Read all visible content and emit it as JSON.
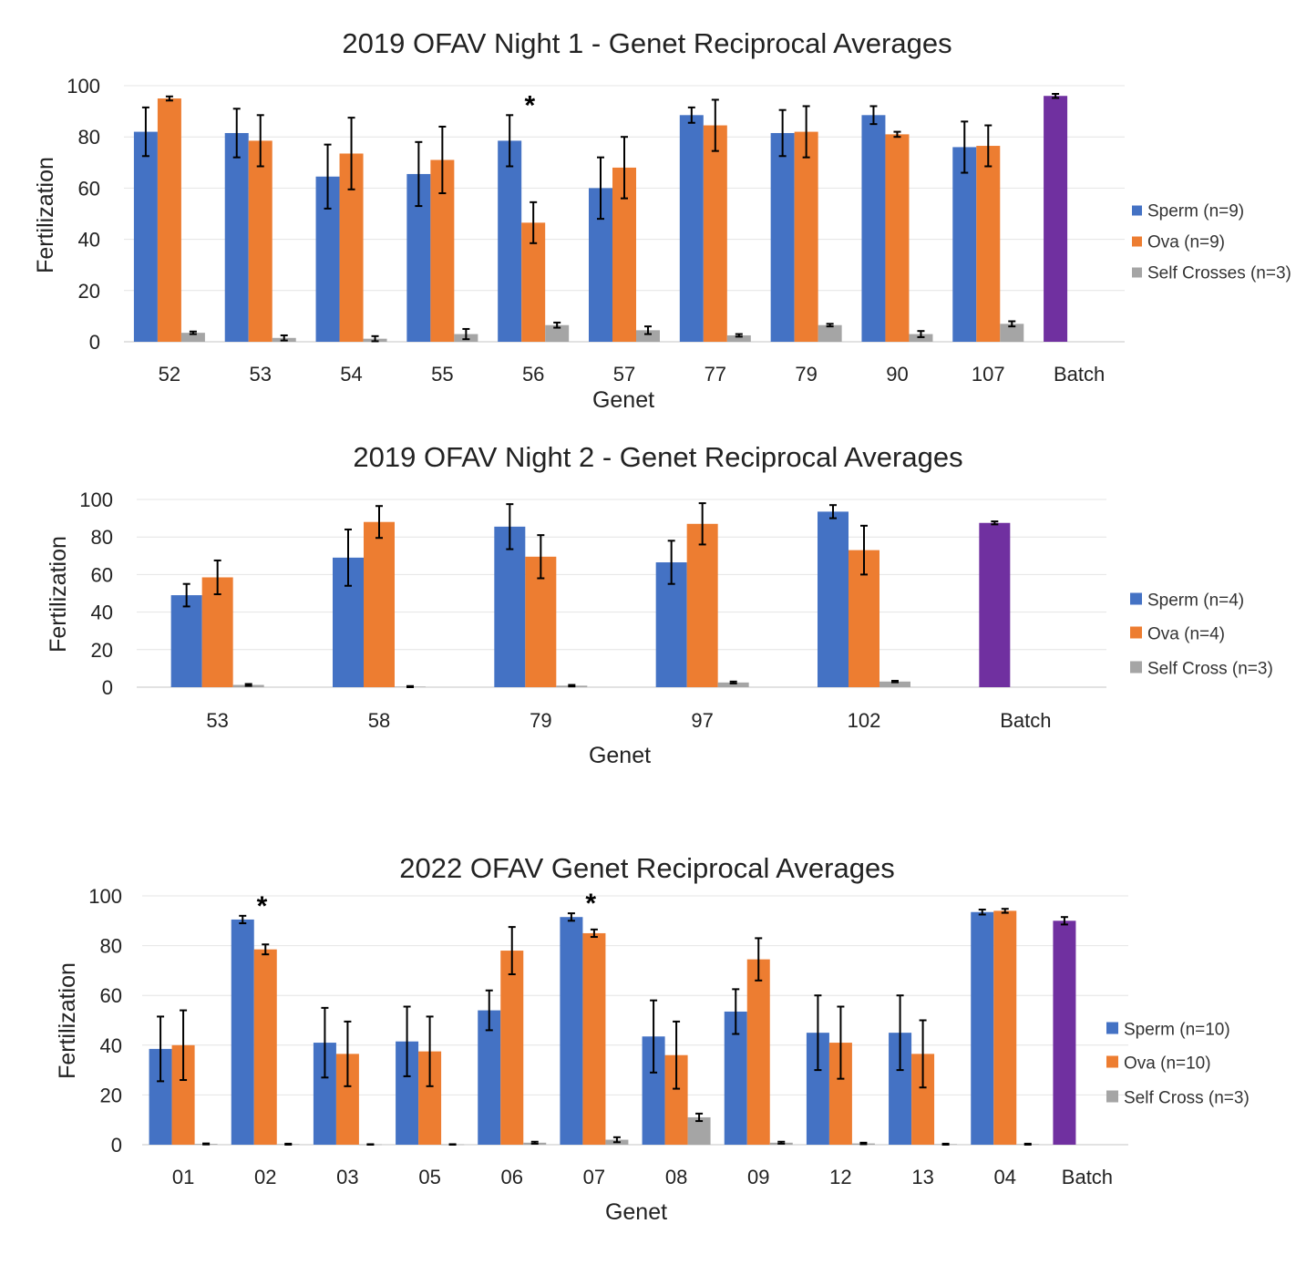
{
  "colors": {
    "sperm": "#4472C4",
    "ova": "#ED7D31",
    "self": "#A5A5A5",
    "batch": "#7030A0"
  },
  "chart_data": [
    {
      "type": "bar",
      "title": "2019 OFAV Night 1 - Genet Reciprocal Averages",
      "xlabel": "Genet",
      "ylabel": "Fertilization",
      "ylim": [
        0,
        100
      ],
      "yticks": [
        "0",
        "20",
        "40",
        "60",
        "80",
        "100"
      ],
      "categories": [
        "52",
        "53",
        "54",
        "55",
        "56",
        "57",
        "77",
        "79",
        "90",
        "107",
        "Batch"
      ],
      "series": [
        {
          "name": "Sperm (n=9)",
          "key": "sperm",
          "values": [
            82,
            81.5,
            64.5,
            65.5,
            78.5,
            60,
            88.5,
            81.5,
            88.5,
            76,
            null
          ],
          "errors": [
            9.5,
            9.5,
            12.5,
            12.5,
            10,
            12,
            3,
            9,
            3.5,
            10,
            null
          ]
        },
        {
          "name": "Ova (n=9)",
          "key": "ova",
          "values": [
            95,
            78.5,
            73.5,
            71,
            46.5,
            68,
            84.5,
            82,
            81,
            76.5,
            null
          ],
          "errors": [
            0.8,
            10,
            14,
            13,
            8,
            12,
            10,
            10,
            1,
            8,
            null
          ]
        },
        {
          "name": "Self Crosses (n=3)",
          "key": "self",
          "values": [
            3.5,
            1.5,
            1.2,
            3,
            6.5,
            4.5,
            2.5,
            6.5,
            3,
            7,
            null
          ],
          "errors": [
            0.5,
            1,
            1,
            2,
            1,
            1.5,
            0.5,
            0.5,
            1.2,
            1,
            null
          ]
        },
        {
          "name": "Batch",
          "key": "batch",
          "legend": false,
          "values": [
            null,
            null,
            null,
            null,
            null,
            null,
            null,
            null,
            null,
            null,
            96
          ],
          "errors": [
            null,
            null,
            null,
            null,
            null,
            null,
            null,
            null,
            null,
            null,
            0.8
          ]
        }
      ],
      "significance_marks": [
        {
          "category": "56",
          "series": "sperm",
          "label": "*"
        }
      ],
      "legend": "right"
    },
    {
      "type": "bar",
      "title": "2019 OFAV Night 2 - Genet Reciprocal Averages",
      "xlabel": "Genet",
      "ylabel": "Fertilization",
      "ylim": [
        0,
        100
      ],
      "yticks": [
        "0",
        "20",
        "40",
        "60",
        "80",
        "100"
      ],
      "categories": [
        "53",
        "58",
        "79",
        "97",
        "102",
        "Batch"
      ],
      "series": [
        {
          "name": "Sperm (n=4)",
          "key": "sperm",
          "values": [
            49,
            69,
            85.5,
            66.5,
            93.5,
            null
          ],
          "errors": [
            6,
            15,
            12,
            11.5,
            3.5,
            null
          ]
        },
        {
          "name": "Ova (n=4)",
          "key": "ova",
          "values": [
            58.5,
            88,
            69.5,
            87,
            73,
            null
          ],
          "errors": [
            9,
            8.5,
            11.5,
            11,
            13,
            null
          ]
        },
        {
          "name": "Self Cross (n=3)",
          "key": "self",
          "values": [
            1.2,
            0.3,
            0.8,
            2.5,
            3,
            null
          ],
          "errors": [
            0.5,
            0.3,
            0.4,
            0.5,
            0.4,
            null
          ]
        },
        {
          "name": "Batch",
          "key": "batch",
          "legend": false,
          "values": [
            null,
            null,
            null,
            null,
            null,
            87.5
          ],
          "errors": [
            null,
            null,
            null,
            null,
            null,
            0.8
          ]
        }
      ],
      "legend": "right"
    },
    {
      "type": "bar",
      "title": "2022 OFAV Genet Reciprocal Averages",
      "xlabel": "Genet",
      "ylabel": "Fertilization",
      "ylim": [
        0,
        100
      ],
      "yticks": [
        "0",
        "20",
        "40",
        "60",
        "80",
        "100"
      ],
      "categories": [
        "01",
        "02",
        "03",
        "05",
        "06",
        "07",
        "08",
        "09",
        "12",
        "13",
        "04",
        "Batch"
      ],
      "series": [
        {
          "name": "Sperm (n=10)",
          "key": "sperm",
          "values": [
            38.5,
            90.5,
            41,
            41.5,
            54,
            91.5,
            43.5,
            53.5,
            45,
            45,
            93.5,
            null
          ],
          "errors": [
            13,
            1.5,
            14,
            14,
            8,
            1.5,
            14.5,
            9,
            15,
            15,
            1,
            null
          ]
        },
        {
          "name": "Ova (n=10)",
          "key": "ova",
          "values": [
            40,
            78.5,
            36.5,
            37.5,
            78,
            85,
            36,
            74.5,
            41,
            36.5,
            94,
            null
          ],
          "errors": [
            14,
            2,
            13,
            14,
            9.5,
            1.5,
            13.5,
            8.5,
            14.5,
            13.5,
            0.8,
            null
          ]
        },
        {
          "name": "Self Cross (n=3)",
          "key": "self",
          "values": [
            0.3,
            0.2,
            0.1,
            0.1,
            0.8,
            2,
            11,
            0.8,
            0.5,
            0.2,
            0.2,
            null
          ],
          "errors": [
            0.2,
            0.2,
            0.1,
            0.1,
            0.4,
            1,
            1.5,
            0.4,
            0.3,
            0.2,
            0.2,
            null
          ]
        },
        {
          "name": "Batch",
          "key": "batch",
          "legend": false,
          "values": [
            null,
            null,
            null,
            null,
            null,
            null,
            null,
            null,
            null,
            null,
            null,
            90
          ],
          "errors": [
            null,
            null,
            null,
            null,
            null,
            null,
            null,
            null,
            null,
            null,
            null,
            1.5
          ]
        }
      ],
      "significance_marks": [
        {
          "category": "02",
          "series": "sperm",
          "label": "*"
        },
        {
          "category": "07",
          "series": "sperm",
          "label": "*"
        }
      ],
      "legend": "right"
    }
  ]
}
